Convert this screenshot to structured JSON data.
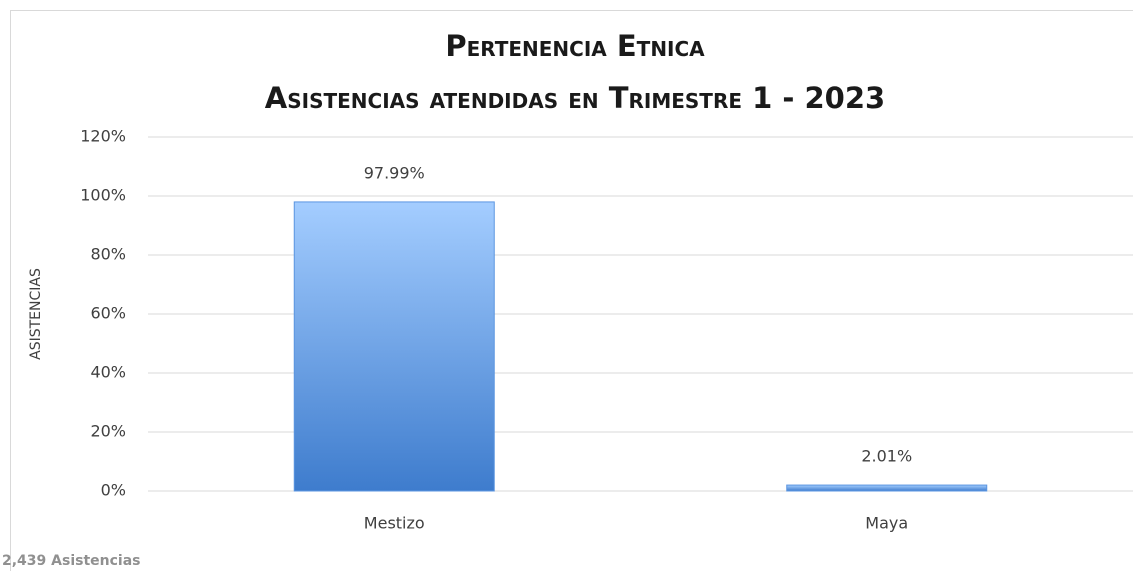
{
  "chart_data": {
    "type": "bar",
    "title": "Pertenencia Etnica",
    "subtitle": "Asistencias atendidas en Trimestre 1  -  2023",
    "ylabel": "ASISTENCIAS",
    "categories": [
      "Mestizo",
      "Maya"
    ],
    "values": [
      97.99,
      2.01
    ],
    "value_labels": [
      "97.99%",
      "2.01%"
    ],
    "color": "#5b95e0",
    "ylim": [
      0,
      120
    ],
    "yticks": [
      {
        "value": 0,
        "label": "0%"
      },
      {
        "value": 20,
        "label": "20%"
      },
      {
        "value": 40,
        "label": "40%"
      },
      {
        "value": 60,
        "label": "60%"
      },
      {
        "value": 80,
        "label": "80%"
      },
      {
        "value": 100,
        "label": "100%"
      },
      {
        "value": 120,
        "label": "120%"
      }
    ],
    "grid": true,
    "footnote": "2,439 Asistencias"
  }
}
